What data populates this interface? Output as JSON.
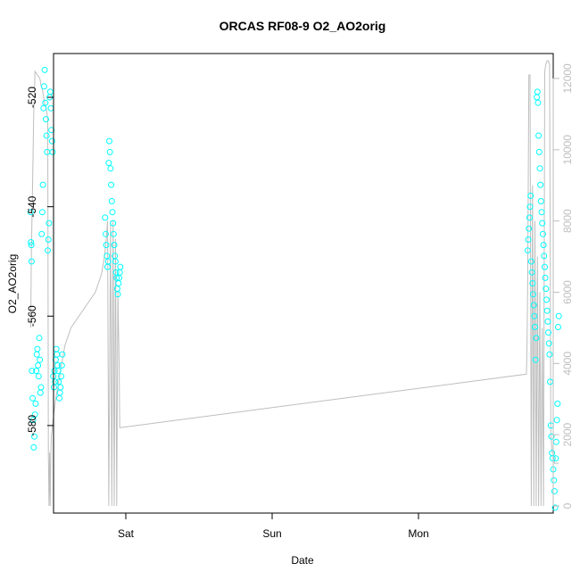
{
  "chart_data": {
    "type": "scatter",
    "title": "ORCAS RF08-9 O2_AO2orig",
    "xlabel": "Date",
    "ylabel": "O2_AO2orig",
    "x_ticks": [
      "Sat",
      "Sun",
      "Mon"
    ],
    "y_ticks": [
      -520,
      -540,
      -560,
      -580
    ],
    "y2_ticks": [
      0,
      2000,
      4000,
      6000,
      8000,
      10000,
      12000
    ],
    "ylim": [
      -596,
      -512
    ],
    "y2lim": [
      -200,
      12700
    ],
    "grid": false,
    "legend": "none",
    "colors": {
      "points": "#00ffff",
      "secondary_line": "#bebebe",
      "axis": "#000000",
      "secondary_axis": "#bebebe"
    },
    "series": [
      {
        "kind": "points",
        "axis": "left",
        "x_hours": [
          -15.6,
          -15.55,
          -15.5,
          -15.45,
          -15.4,
          -15.3,
          -15.2,
          -15.1,
          -15.0,
          -14.9,
          -14.8,
          -14.7,
          -14.6,
          -14.5,
          -14.4,
          -14.3,
          -14.2,
          -14.1,
          -14.0,
          -13.9,
          -13.8,
          -13.7,
          -13.6,
          -13.5,
          -13.4,
          -13.3,
          -13.2,
          -13.1,
          -13.0,
          -12.9,
          -12.8,
          -12.7,
          -12.6,
          -12.5,
          -12.4,
          -12.3,
          -12.2,
          -12.1,
          -12.0,
          -11.9,
          -11.8,
          -11.7,
          -11.6,
          -11.5,
          -11.4,
          -11.3,
          -11.2,
          -11.1,
          -11.0,
          -10.9,
          -10.8,
          -10.7,
          -10.6,
          -10.5,
          -10.4,
          -3.4,
          -3.3,
          -3.2,
          -3.1,
          -3.0,
          -2.9,
          -2.8,
          -2.7,
          -2.6,
          -2.5,
          -2.4,
          -2.3,
          -2.2,
          -2.1,
          -2.0,
          -1.9,
          -1.8,
          -1.7,
          -1.6,
          -1.5,
          -1.4,
          -1.3,
          -1.2,
          -1.1,
          -1.0,
          -0.9,
          65.9,
          66.0,
          66.1,
          66.2,
          66.3,
          66.4,
          66.5,
          66.6,
          66.7,
          66.8,
          66.9,
          67.0,
          67.1,
          67.2,
          67.3,
          67.4,
          67.5,
          67.6,
          67.7,
          67.8,
          67.9,
          68.0,
          68.1,
          68.2,
          68.3,
          68.4,
          68.5,
          68.6,
          68.7,
          68.8,
          68.9,
          69.0,
          69.1,
          69.2,
          69.3,
          69.4,
          69.5,
          69.6,
          69.7,
          69.8,
          69.9,
          70.0,
          70.1,
          70.2,
          70.3,
          70.4,
          70.5,
          70.6,
          70.7,
          70.8,
          70.9,
          71.0
        ],
        "y": [
          -541,
          -546.5,
          -547,
          -550,
          -570,
          -575,
          -579,
          -584,
          -582,
          -578,
          -576,
          -570,
          -567,
          -566,
          -569,
          -571,
          -564,
          -568,
          -574,
          -573,
          -545,
          -541,
          -536,
          -522,
          -518,
          -515,
          -521,
          -524,
          -527,
          -530,
          -548,
          -546,
          -543,
          -520,
          -519,
          -522,
          -526,
          -528,
          -530,
          -571,
          -573,
          -570,
          -572,
          -568,
          -566,
          -567,
          -569,
          -570,
          -572,
          -575,
          -574,
          -573,
          -571,
          -569,
          -567,
          -542,
          -545,
          -547,
          -549,
          -551,
          -550,
          -532,
          -528,
          -530,
          -533,
          -536,
          -539,
          -541,
          -543,
          -545,
          -547,
          -549,
          -550,
          -552,
          -553,
          -555,
          -556,
          -554,
          -553,
          -552,
          -551,
          -548,
          -546,
          -544,
          -542,
          -540,
          -538,
          -550,
          -552,
          -554,
          -556,
          -558,
          -560,
          -562,
          -568,
          -564,
          -520,
          -519,
          -521,
          -527,
          -530,
          -533,
          -536,
          -539,
          -541,
          -543,
          -545,
          -547,
          -549,
          -551,
          -553,
          -555,
          -557,
          -559,
          -561,
          -563,
          -565,
          -567,
          -572,
          -580,
          -582,
          -585,
          -586,
          -588,
          -590,
          -592,
          -595,
          -586,
          -583,
          -579,
          -576,
          -562,
          -560
        ]
      },
      {
        "kind": "line",
        "axis": "right",
        "x_hours": [
          -15.6,
          -15.5,
          -15.3,
          -15.1,
          -14.9,
          -14.7,
          -14.5,
          -14.3,
          -14.1,
          -13.9,
          -13.7,
          -13.6,
          -13.5,
          -13.4,
          -13.3,
          -13.2,
          -13.1,
          -13.0,
          -12.9,
          -12.8,
          -12.7,
          -12.6,
          -12.5,
          -12.4,
          -12.3,
          -12.2,
          -12.1,
          -12.0,
          -11.8,
          -11.5,
          -11.0,
          -10.5,
          -10.0,
          -9.0,
          -7.0,
          -5.0,
          -4.0,
          -3.5,
          -3.2,
          -3.0,
          -2.8,
          -2.5,
          -2.3,
          -2.1,
          -1.9,
          -1.7,
          -1.5,
          -1.3,
          -1.2,
          -1.1,
          -1.0,
          -0.9,
          65.7,
          65.8,
          65.9,
          66.0,
          66.1,
          66.3,
          66.5,
          66.7,
          66.9,
          67.1,
          67.3,
          67.5,
          67.7,
          67.9,
          68.1,
          68.3,
          68.5,
          68.7,
          68.9,
          69.1,
          69.3,
          69.5,
          69.7,
          69.9,
          70.1,
          70.3,
          70.5,
          70.7,
          70.9,
          71.0
        ],
        "y": [
          5000,
          7000,
          9000,
          11000,
          12200,
          12150,
          12100,
          12050,
          12000,
          11800,
          11700,
          11600,
          11500,
          11400,
          11300,
          11200,
          11200,
          11100,
          11000,
          10900,
          1500,
          0,
          1500,
          0,
          1500,
          2000,
          2100,
          2300,
          2600,
          3000,
          3500,
          4000,
          4500,
          5000,
          5500,
          6000,
          6500,
          7000,
          7500,
          8000,
          0,
          8000,
          0,
          8000,
          0,
          7500,
          0,
          6000,
          5000,
          4000,
          2200,
          2200,
          3700,
          4500,
          6000,
          9000,
          12100,
          12100,
          0,
          9000,
          0,
          8000,
          0,
          7000,
          0,
          6000,
          0,
          5000,
          0,
          12200,
          12400,
          12500,
          12500,
          12400,
          2000,
          1500,
          1500,
          1200,
          1200,
          1200,
          1200,
          1200
        ]
      }
    ]
  }
}
